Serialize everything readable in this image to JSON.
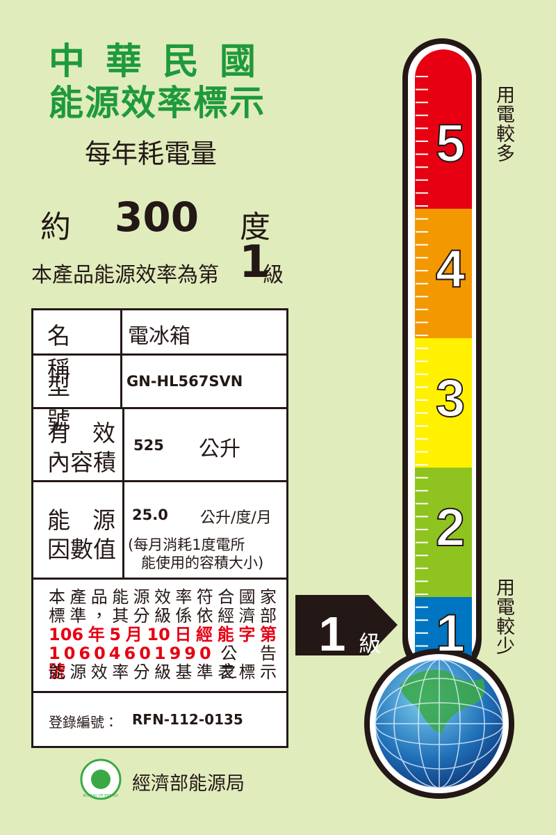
{
  "header": {
    "country": "中華民國",
    "title": "能源效率標示",
    "subtitle": "每年耗電量"
  },
  "consumption": {
    "prefix": "約",
    "value": "300",
    "unit": "度"
  },
  "grade_statement": {
    "prefix": "本產品能源效率為第",
    "grade": "1",
    "suffix": "級"
  },
  "table": {
    "name": {
      "label": "名稱",
      "value": "電冰箱"
    },
    "model": {
      "label": "型號",
      "value": "GN-HL567SVN"
    },
    "capacity": {
      "label": [
        "有效",
        "內容積"
      ],
      "value": "525",
      "unit": "公升"
    },
    "factor": {
      "label": [
        "能源",
        "因數值"
      ],
      "value": "25.0",
      "unit": "公升/度/月",
      "note": [
        "(每月消耗1度電所",
        "能使用的容積大小)"
      ]
    },
    "statement": [
      "本產品能源效率符合國家",
      "標準，其分級係依經濟部",
      "106年5月10日經能字第",
      "10604601990號",
      "公告之",
      "能源效率分級基準表標示"
    ],
    "registration": {
      "label": "登錄編號：",
      "value": "RFN-112-0135"
    }
  },
  "thermometer": {
    "levels": [
      "5",
      "4",
      "3",
      "2",
      "1"
    ],
    "high_label": "用電較多",
    "low_label": "用電較少"
  },
  "arrow": {
    "grade": "1",
    "unit": "級"
  },
  "footer": {
    "agency": "經濟部能源局",
    "logo_text": "BUREAU OF ENERGY"
  }
}
